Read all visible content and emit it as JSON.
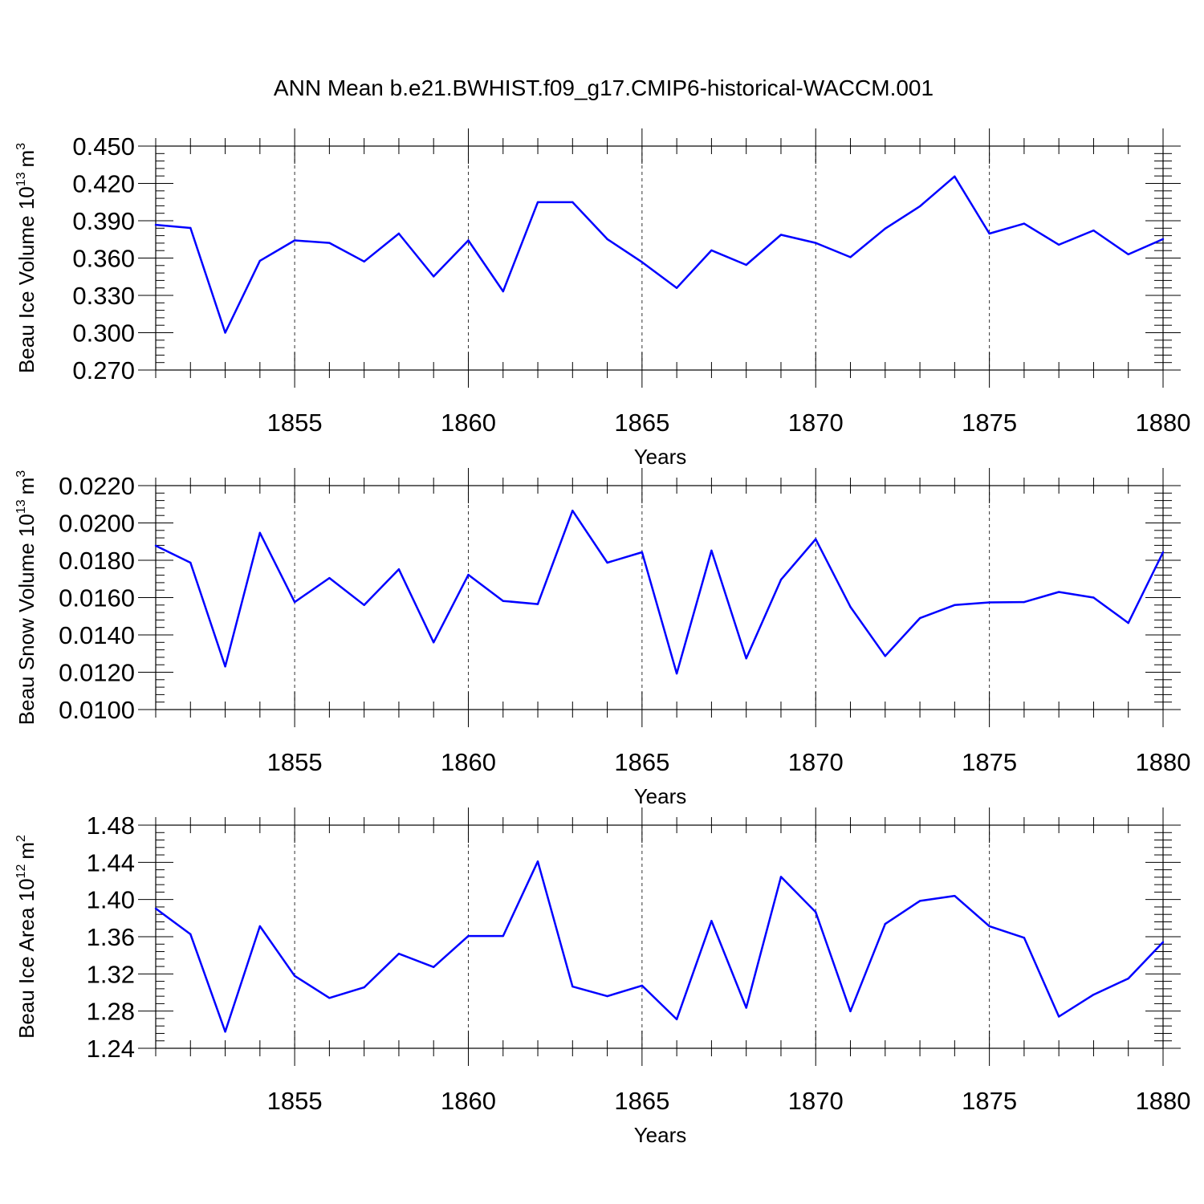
{
  "figure": {
    "title": "ANN Mean b.e21.BWHIST.f09_g17.CMIP6-historical-WACCM.001"
  },
  "chart_data": [
    {
      "type": "line",
      "title": "",
      "xlabel": "Years",
      "ylabel": "Beau Ice Volume 10",
      "ylabel_exp": "13",
      "ylabel_unit": "m",
      "ylabel_unit_exp": "3",
      "xlim": [
        1851,
        1880
      ],
      "ylim": [
        0.27,
        0.45
      ],
      "yticks": [
        "0.270",
        "0.300",
        "0.330",
        "0.360",
        "0.390",
        "0.420",
        "0.450"
      ],
      "xticks": [
        "1855",
        "1860",
        "1865",
        "1870",
        "1875",
        "1880"
      ],
      "grid": "dashed vertical at major x ticks",
      "series": [
        {
          "color": "#0000ff",
          "x": [
            1851,
            1852,
            1853,
            1854,
            1855,
            1856,
            1857,
            1858,
            1859,
            1860,
            1861,
            1862,
            1863,
            1864,
            1865,
            1866,
            1867,
            1868,
            1869,
            1870,
            1871,
            1872,
            1873,
            1874,
            1875,
            1876,
            1877,
            1878,
            1879,
            1880
          ],
          "values": [
            0.3867,
            0.3842,
            0.3,
            0.3578,
            0.3742,
            0.3722,
            0.3572,
            0.3797,
            0.3452,
            0.3742,
            0.3332,
            0.4049,
            0.4049,
            0.3752,
            0.3567,
            0.336,
            0.3662,
            0.3545,
            0.3787,
            0.3722,
            0.3607,
            0.3837,
            0.4016,
            0.4256,
            0.3797,
            0.3877,
            0.3707,
            0.3822,
            0.363,
            0.3752
          ]
        }
      ]
    },
    {
      "type": "line",
      "title": "",
      "xlabel": "Years",
      "ylabel": "Beau Snow Volume 10",
      "ylabel_exp": "13",
      "ylabel_unit": "m",
      "ylabel_unit_exp": "3",
      "xlim": [
        1851,
        1880
      ],
      "ylim": [
        0.01,
        0.022
      ],
      "yticks": [
        "0.0100",
        "0.0120",
        "0.0140",
        "0.0160",
        "0.0180",
        "0.0200",
        "0.0220"
      ],
      "xticks": [
        "1855",
        "1860",
        "1865",
        "1870",
        "1875",
        "1880"
      ],
      "grid": "dashed vertical at major x ticks",
      "series": [
        {
          "color": "#0000ff",
          "x": [
            1851,
            1852,
            1853,
            1854,
            1855,
            1856,
            1857,
            1858,
            1859,
            1860,
            1861,
            1862,
            1863,
            1864,
            1865,
            1866,
            1867,
            1868,
            1869,
            1870,
            1871,
            1872,
            1873,
            1874,
            1875,
            1876,
            1877,
            1878,
            1879,
            1880
          ],
          "values": [
            0.01878,
            0.01787,
            0.01231,
            0.01947,
            0.01576,
            0.01705,
            0.0156,
            0.01752,
            0.0136,
            0.01722,
            0.01582,
            0.01565,
            0.02066,
            0.01787,
            0.01843,
            0.01193,
            0.01852,
            0.01274,
            0.01696,
            0.01913,
            0.0155,
            0.01287,
            0.0149,
            0.0156,
            0.01574,
            0.01576,
            0.0163,
            0.016,
            0.01464,
            0.01843
          ]
        }
      ]
    },
    {
      "type": "line",
      "title": "",
      "xlabel": "Years",
      "ylabel": "Beau Ice Area 10",
      "ylabel_exp": "12",
      "ylabel_unit": "m",
      "ylabel_unit_exp": "2",
      "xlim": [
        1851,
        1880
      ],
      "ylim": [
        1.24,
        1.48
      ],
      "yticks": [
        "1.24",
        "1.28",
        "1.32",
        "1.36",
        "1.40",
        "1.44",
        "1.48"
      ],
      "xticks": [
        "1855",
        "1860",
        "1865",
        "1870",
        "1875",
        "1880"
      ],
      "grid": "dashed vertical at major x ticks",
      "series": [
        {
          "color": "#0000ff",
          "x": [
            1851,
            1852,
            1853,
            1854,
            1855,
            1856,
            1857,
            1858,
            1859,
            1860,
            1861,
            1862,
            1863,
            1864,
            1865,
            1866,
            1867,
            1868,
            1869,
            1870,
            1871,
            1872,
            1873,
            1874,
            1875,
            1876,
            1877,
            1878,
            1879,
            1880
          ],
          "values": [
            1.3903,
            1.3627,
            1.2579,
            1.3713,
            1.3179,
            1.2941,
            1.3055,
            1.3417,
            1.3274,
            1.3608,
            1.3608,
            1.441,
            1.3064,
            1.296,
            1.3074,
            1.2712,
            1.377,
            1.2836,
            1.4244,
            1.3865,
            1.2798,
            1.3737,
            1.3985,
            1.4039,
            1.3713,
            1.3589,
            1.2741,
            1.2977,
            1.315,
            1.3541
          ]
        }
      ]
    }
  ]
}
